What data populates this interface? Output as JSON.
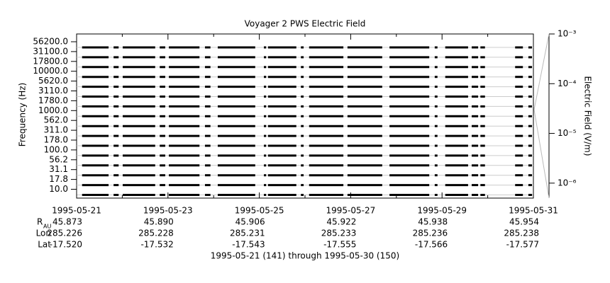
{
  "chart_data": {
    "type": "channel-strip",
    "title": "Voyager 2 PWS Electric Field",
    "ylabel": "Frequency (Hz)",
    "y2label": "Electric Field (V/m)",
    "categories": [
      "56200.0",
      "31100.0",
      "17800.0",
      "10000.0",
      "5620.0",
      "3110.0",
      "1780.0",
      "1000.0",
      "562.0",
      "311.0",
      "178.0",
      "100.0",
      "56.2",
      "31.1",
      "17.8",
      "10.0"
    ],
    "xlim": [
      "1995-05-21",
      "1995-05-31"
    ],
    "xticks": [
      "1995-05-21",
      "1995-05-23",
      "1995-05-25",
      "1995-05-27",
      "1995-05-29",
      "1995-05-31"
    ],
    "coverage_days": [
      [
        0.12,
        0.7
      ],
      [
        0.81,
        0.92
      ],
      [
        1.01,
        1.72
      ],
      [
        1.82,
        1.94
      ],
      [
        2.02,
        2.69
      ],
      [
        2.81,
        2.93
      ],
      [
        3.09,
        3.91
      ],
      [
        4.1,
        4.15
      ],
      [
        4.19,
        4.81
      ],
      [
        4.91,
        4.97
      ],
      [
        5.09,
        5.84
      ],
      [
        5.93,
        6.69
      ],
      [
        6.85,
        7.72
      ],
      [
        7.84,
        7.9
      ],
      [
        8.07,
        8.57
      ],
      [
        8.65,
        8.79
      ],
      [
        8.84,
        8.94
      ],
      [
        9.6,
        9.77
      ],
      [
        9.89,
        9.97
      ]
    ],
    "y2log": true,
    "y2lim": [
      5e-07,
      0.001
    ],
    "y2ticks": [
      {
        "value": 0.001,
        "label": "10⁻³"
      },
      {
        "value": 0.0001,
        "label": "10⁻⁴"
      },
      {
        "value": 1e-05,
        "label": "10⁻⁵"
      },
      {
        "value": 1e-06,
        "label": "10⁻⁶"
      }
    ],
    "color": "#000000",
    "ephemeris": {
      "labels": [
        "R",
        "Lon",
        "Lat"
      ],
      "r_subscript": "AU",
      "rows": [
        [
          "45.873",
          "45.890",
          "45.906",
          "45.922",
          "45.938",
          "45.954"
        ],
        [
          "285.226",
          "285.228",
          "285.231",
          "285.233",
          "285.236",
          "285.238"
        ],
        [
          "-17.520",
          "-17.532",
          "-17.543",
          "-17.555",
          "-17.566",
          "-17.577"
        ]
      ]
    },
    "footer": "1995-05-21 (141) through 1995-05-30 (150)"
  }
}
